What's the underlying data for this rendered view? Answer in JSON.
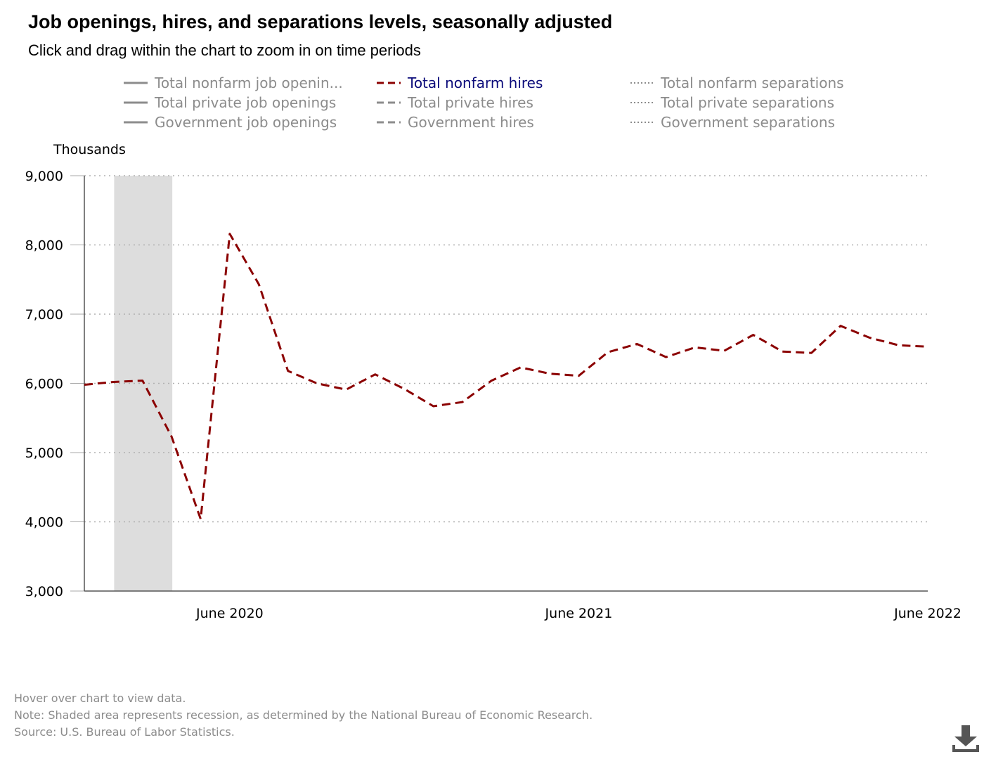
{
  "header": {
    "title": "Job openings, hires, and separations levels, seasonally adjusted",
    "subtitle": "Click and drag within the chart to zoom in on time periods"
  },
  "legend": {
    "items": [
      {
        "label": "Total nonfarm job openin...",
        "style": "solid",
        "active": false
      },
      {
        "label": "Total private job openings",
        "style": "solid",
        "active": false
      },
      {
        "label": "Government job openings",
        "style": "solid",
        "active": false
      },
      {
        "label": "Total nonfarm hires",
        "style": "dashed",
        "active": true
      },
      {
        "label": "Total private hires",
        "style": "dashed",
        "active": false
      },
      {
        "label": "Government hires",
        "style": "dashed",
        "active": false
      },
      {
        "label": "Total nonfarm separations",
        "style": "dotted",
        "active": false
      },
      {
        "label": "Total private separations",
        "style": "dotted",
        "active": false
      },
      {
        "label": "Government separations",
        "style": "dotted",
        "active": false
      }
    ]
  },
  "footer": {
    "hover": "Hover over chart to view data.",
    "note": "Note: Shaded area represents recession, as determined by the National Bureau of Economic Research.",
    "source": "Source: U.S. Bureau of Labor Statistics."
  },
  "colors": {
    "active_series": "#8b0000",
    "inactive_legend": "#8c8c8c",
    "active_legend_text": "#0b0b7a",
    "recession": "#dddddd",
    "grid": "#b0b0b0",
    "axis": "#555555"
  },
  "icons": {
    "download": "download-icon"
  },
  "chart_data": {
    "type": "line",
    "ylabel": "Thousands",
    "ylim": [
      3000,
      9000
    ],
    "yticks": [
      3000,
      4000,
      5000,
      6000,
      7000,
      8000,
      9000
    ],
    "ytick_labels": [
      "3,000",
      "4,000",
      "5,000",
      "6,000",
      "7,000",
      "8,000",
      "9,000"
    ],
    "xlim": [
      "2020-01",
      "2022-06"
    ],
    "xticks": [
      "2020-06",
      "2021-06",
      "2022-06"
    ],
    "xtick_labels": [
      "June 2020",
      "June 2021",
      "June 2022"
    ],
    "grid": "horizontal dotted",
    "legend_position": "top",
    "recession": {
      "start": "2020-02",
      "end": "2020-04"
    },
    "series": [
      {
        "name": "Total nonfarm hires",
        "style": "dashed",
        "x": [
          "2020-01",
          "2020-02",
          "2020-03",
          "2020-04",
          "2020-05",
          "2020-06",
          "2020-07",
          "2020-08",
          "2020-09",
          "2020-10",
          "2020-11",
          "2020-12",
          "2021-01",
          "2021-02",
          "2021-03",
          "2021-04",
          "2021-05",
          "2021-06",
          "2021-07",
          "2021-08",
          "2021-09",
          "2021-10",
          "2021-11",
          "2021-12",
          "2022-01",
          "2022-02",
          "2022-03",
          "2022-04",
          "2022-05",
          "2022-06"
        ],
        "values": [
          5980,
          6020,
          6040,
          5230,
          4040,
          8160,
          7430,
          6180,
          6000,
          5910,
          6130,
          5920,
          5670,
          5730,
          6040,
          6230,
          6140,
          6110,
          6450,
          6570,
          6380,
          6520,
          6470,
          6700,
          6460,
          6440,
          6830,
          6660,
          6550,
          6530
        ]
      }
    ]
  }
}
